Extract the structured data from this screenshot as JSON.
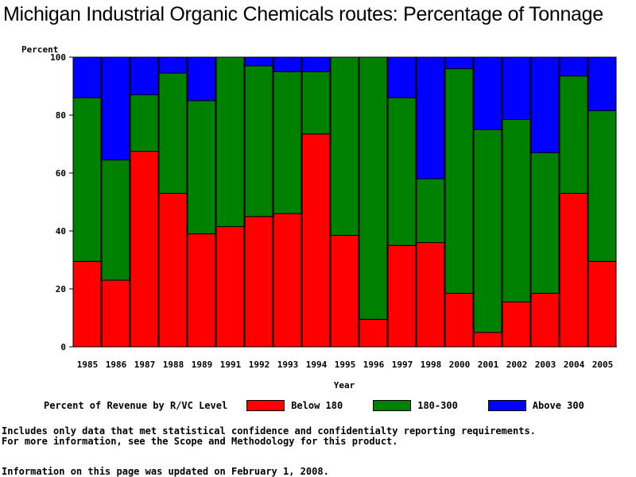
{
  "title": "Michigan Industrial Organic Chemicals routes: Percentage of Tonnage",
  "chart_data": {
    "type": "bar",
    "stacked": true,
    "title": "Michigan Industrial Organic Chemicals routes: Percentage of Tonnage",
    "ylabel": "Percent",
    "xlabel": "Year",
    "ylim": [
      0,
      100
    ],
    "yticks": [
      0,
      20,
      40,
      60,
      80,
      100
    ],
    "categories": [
      "1985",
      "1986",
      "1987",
      "1988",
      "1989",
      "1991",
      "1992",
      "1993",
      "1994",
      "1995",
      "1996",
      "1997",
      "1998",
      "2000",
      "2001",
      "2002",
      "2003",
      "2004",
      "2005"
    ],
    "series": [
      {
        "name": "Below 180",
        "color": "#ff0000",
        "values": [
          29.5,
          23.0,
          67.5,
          53.0,
          39.0,
          41.5,
          45.0,
          46.0,
          73.5,
          38.5,
          9.5,
          35.0,
          36.0,
          18.5,
          5.0,
          15.5,
          18.5,
          53.0,
          29.5
        ]
      },
      {
        "name": "180-300",
        "color": "#008000",
        "values": [
          56.5,
          41.5,
          19.5,
          41.5,
          46.0,
          58.5,
          52.0,
          49.0,
          21.5,
          61.5,
          90.5,
          51.0,
          22.0,
          77.5,
          70.0,
          63.0,
          48.5,
          40.5,
          52.0
        ]
      },
      {
        "name": "Above 300",
        "color": "#0000ff",
        "values": [
          14.0,
          35.5,
          13.0,
          5.5,
          15.0,
          0.0,
          3.0,
          5.0,
          5.0,
          0.0,
          0.0,
          14.0,
          42.0,
          4.0,
          25.0,
          21.5,
          33.0,
          6.5,
          18.5
        ]
      }
    ],
    "legend_title": "Percent of Revenue by R/VC Level",
    "legend_position": "bottom",
    "grid": false
  },
  "footnotes": [
    "Includes only data that met statistical confidence and confidentialty reporting requirements.",
    "For more information, see the Scope and Methodology for this product."
  ],
  "updated_note": "Information on this page was updated on February 1, 2008."
}
